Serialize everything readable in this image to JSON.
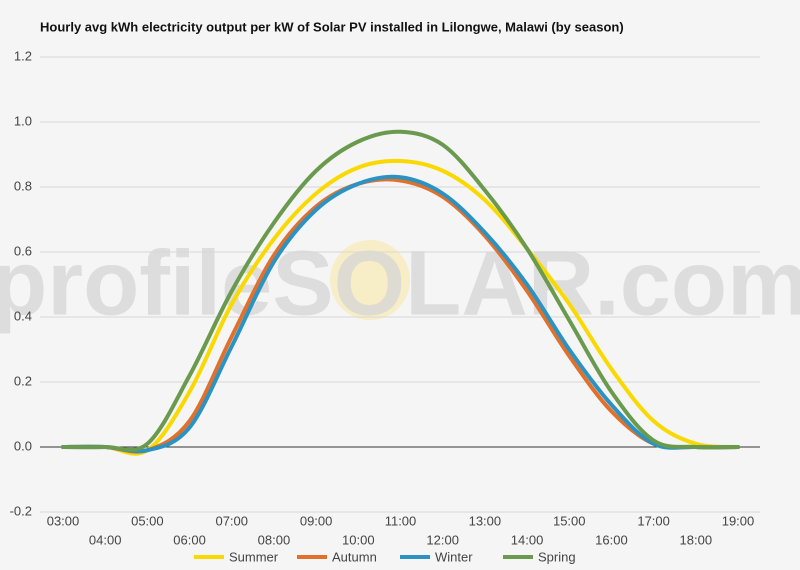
{
  "chart_data": {
    "type": "line",
    "title": "Hourly avg kWh electricity output per kW of Solar PV installed in Lilongwe, Malawi (by season)",
    "watermark": "profileSOLAR.com",
    "categories": [
      "03:00",
      "04:00",
      "05:00",
      "06:00",
      "07:00",
      "08:00",
      "09:00",
      "10:00",
      "11:00",
      "12:00",
      "13:00",
      "14:00",
      "15:00",
      "16:00",
      "17:00",
      "18:00",
      "19:00"
    ],
    "series": [
      {
        "name": "Summer",
        "color": "#f9d900",
        "values": [
          0,
          0,
          -0.01,
          0.17,
          0.44,
          0.64,
          0.78,
          0.86,
          0.88,
          0.85,
          0.76,
          0.61,
          0.44,
          0.24,
          0.08,
          0.01,
          0
        ]
      },
      {
        "name": "Autumn",
        "color": "#e0702a",
        "values": [
          0,
          0,
          -0.01,
          0.08,
          0.34,
          0.59,
          0.74,
          0.81,
          0.82,
          0.77,
          0.65,
          0.48,
          0.28,
          0.11,
          0.01,
          0,
          0
        ]
      },
      {
        "name": "Winter",
        "color": "#2a93c4",
        "values": [
          0,
          0,
          -0.01,
          0.06,
          0.31,
          0.57,
          0.73,
          0.81,
          0.83,
          0.78,
          0.66,
          0.5,
          0.3,
          0.13,
          0.01,
          0,
          0
        ]
      },
      {
        "name": "Spring",
        "color": "#6a9a4e",
        "values": [
          0,
          0,
          0.01,
          0.22,
          0.48,
          0.69,
          0.85,
          0.94,
          0.97,
          0.93,
          0.79,
          0.61,
          0.39,
          0.17,
          0.02,
          0,
          0
        ]
      }
    ],
    "ylim": [
      -0.2,
      1.2
    ],
    "yticks": [
      -0.2,
      {
        "value": 0,
        "label": "0.0"
      },
      0.2,
      0.4,
      0.6,
      0.8,
      {
        "value": 1,
        "label": "1.0"
      },
      1.2
    ],
    "grid": true,
    "legend": "bottom"
  }
}
